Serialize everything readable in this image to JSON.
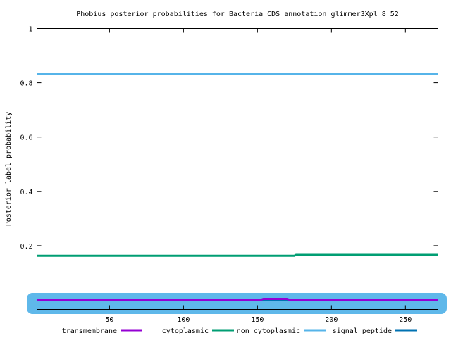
{
  "chart_data": {
    "type": "line",
    "title": "Phobius posterior probabilities for Bacteria_CDS_annotation_glimmer3Xpl_8_52",
    "xlabel": "",
    "ylabel": "Posterior label probability",
    "xlim": [
      1,
      272
    ],
    "ylim": [
      -0.035,
      1
    ],
    "grid": false,
    "legend_position": "bottom",
    "x_ticks": [
      50,
      100,
      150,
      200,
      250
    ],
    "x_tick_labels": [
      "50",
      "100",
      "150",
      "200",
      "250"
    ],
    "y_ticks": [
      0.2,
      0.4,
      0.6,
      0.8,
      1
    ],
    "y_tick_labels": [
      "0.2",
      "0.4",
      "0.6",
      "0.8",
      "1"
    ],
    "series": [
      {
        "name": "transmembrane",
        "color": "#9400d3",
        "points": [
          [
            1,
            0
          ],
          [
            152,
            0
          ],
          [
            154,
            0.004
          ],
          [
            170,
            0.004
          ],
          [
            172,
            0
          ],
          [
            272,
            0
          ]
        ]
      },
      {
        "name": "cytoplasmic",
        "color": "#009e73",
        "points": [
          [
            1,
            0.163
          ],
          [
            175,
            0.163
          ],
          [
            176,
            0.166
          ],
          [
            272,
            0.166
          ]
        ]
      },
      {
        "name": "non cytoplasmic",
        "color": "#56b4e9",
        "points": [
          [
            1,
            0.834
          ],
          [
            272,
            0.834
          ]
        ]
      },
      {
        "name": "signal peptide",
        "color": "#0072b2",
        "points": [
          [
            1,
            0
          ],
          [
            272,
            0
          ]
        ]
      }
    ]
  }
}
